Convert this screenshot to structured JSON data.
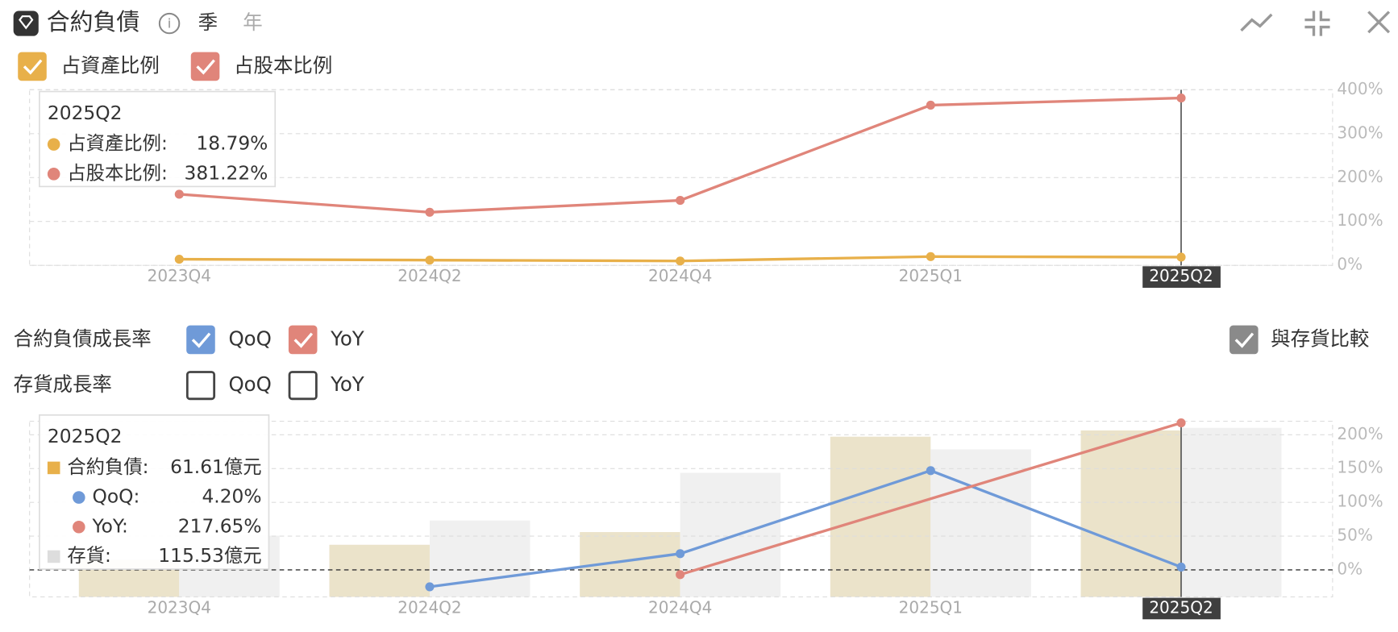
{
  "header": {
    "title": "合約負債",
    "period_options": [
      "季",
      "年"
    ],
    "selected_period": 0
  },
  "chart_data": [
    {
      "type": "line",
      "categories": [
        "2023Q4",
        "2024Q2",
        "2024Q4",
        "2025Q1",
        "2025Q2"
      ],
      "series": [
        {
          "name": "占資產比例",
          "color": "#e8b04a",
          "checked": true,
          "values": [
            14,
            12,
            10,
            20,
            18.79
          ]
        },
        {
          "name": "占股本比例",
          "color": "#e0857a",
          "checked": true,
          "values": [
            162,
            121,
            148,
            365,
            381.22
          ]
        }
      ],
      "ylim": [
        0,
        400
      ],
      "yticks": [
        {
          "value": 0,
          "label": "0%"
        },
        {
          "value": 100,
          "label": "100%"
        },
        {
          "value": 200,
          "label": "200%"
        },
        {
          "value": 300,
          "label": "300%"
        },
        {
          "value": 400,
          "label": "400%"
        }
      ],
      "grid": true,
      "legend": "top-left",
      "highlight_index": 4,
      "tooltip": {
        "title": "2025Q2",
        "rows": [
          {
            "label": "占資產比例:",
            "value": "18.79%"
          },
          {
            "label": "占股本比例:",
            "value": "381.22%"
          }
        ]
      }
    },
    {
      "type": "bar_line",
      "categories": [
        "2023Q4",
        "2024Q2",
        "2024Q4",
        "2025Q1",
        "2025Q2"
      ],
      "series": [
        {
          "name": "合約負債",
          "type": "bar",
          "axis": "y2",
          "color": "#e9e0c4",
          "values": [
            13.7,
            19.3,
            24,
            59.3,
            61.61
          ]
        },
        {
          "name": "QoQ",
          "type": "line",
          "color": "#6f9ad8",
          "values": [
            null,
            -25,
            24,
            147,
            4.2
          ]
        },
        {
          "name": "YoY",
          "type": "line",
          "color": "#e0857a",
          "values": [
            null,
            null,
            -7,
            null,
            217.65
          ]
        },
        {
          "name": "存貨",
          "type": "bar",
          "axis": "y3",
          "color": "#f0f0f0",
          "values": [
            41.8,
            52.2,
            84.8,
            100.8,
            115.53
          ]
        }
      ],
      "ylim": [
        -40,
        220
      ],
      "yticks": [
        {
          "value": 0,
          "label": "0%"
        },
        {
          "value": 50,
          "label": "50%"
        },
        {
          "value": 100,
          "label": "100%"
        },
        {
          "value": 150,
          "label": "150%"
        },
        {
          "value": 200,
          "label": "200%"
        }
      ],
      "y2lim": [
        0,
        65
      ],
      "y3lim": [
        0,
        120
      ],
      "grid": true,
      "zero_line": true,
      "connect_nulls": true,
      "highlight_index": 4,
      "tooltip": {
        "title": "2025Q2",
        "rows": [
          {
            "label": "合約負債:",
            "value": "61.61億元"
          },
          {
            "label": "QoQ:",
            "value": "4.20%"
          },
          {
            "label": "YoY:",
            "value": "217.65%"
          },
          {
            "label": "存貨:",
            "value": "115.53億元"
          }
        ]
      }
    }
  ],
  "controls": {
    "liability_growth": {
      "label": "合約負債成長率",
      "options": [
        {
          "label": "QoQ",
          "checked": true,
          "color": "#6f9ad8"
        },
        {
          "label": "YoY",
          "checked": true,
          "color": "#e0857a"
        }
      ]
    },
    "inventory_growth": {
      "label": "存貨成長率",
      "options": [
        {
          "label": "QoQ",
          "checked": false,
          "color": "#6f9ad8"
        },
        {
          "label": "YoY",
          "checked": false,
          "color": "#e0857a"
        }
      ]
    },
    "compare_inventory": {
      "label": "與存貨比較",
      "checked": true,
      "color": "#8a8a8a"
    }
  }
}
